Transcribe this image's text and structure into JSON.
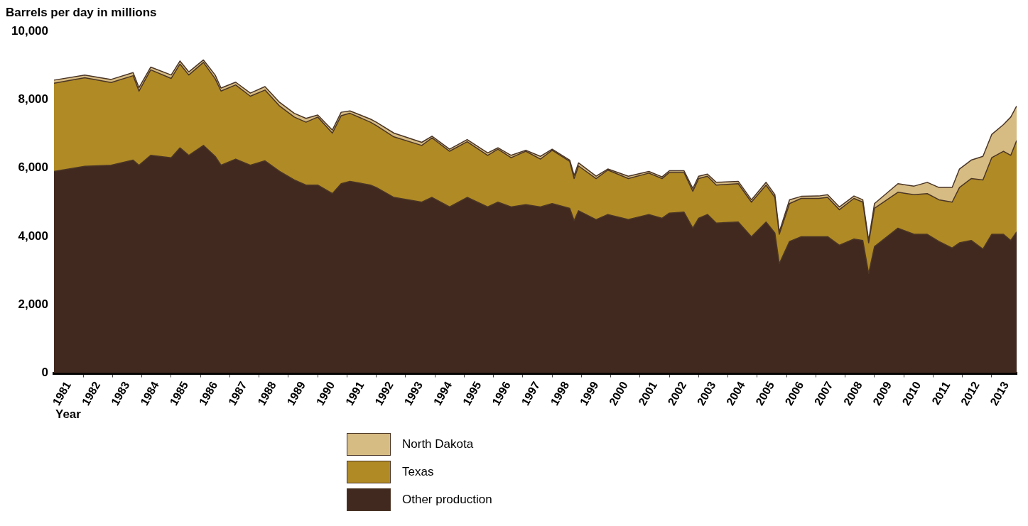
{
  "chart_data": {
    "type": "area",
    "stacked": true,
    "xlabel": "Year",
    "ylabel": "Barrels per day in millions",
    "legend": "bottom",
    "x": [
      1981.0,
      1982.05,
      1982.95,
      1983.7,
      1983.9,
      1984.3,
      1985.0,
      1985.3,
      1985.6,
      1986.1,
      1986.5,
      1986.7,
      1987.2,
      1987.7,
      1988.2,
      1988.7,
      1989.2,
      1989.6,
      1990.0,
      1990.5,
      1990.8,
      1991.1,
      1991.8,
      1992.0,
      1992.6,
      1993.55,
      1993.9,
      1994.5,
      1995.1,
      1995.8,
      1996.15,
      1996.6,
      1997.1,
      1997.6,
      1998.0,
      1998.6,
      1998.75,
      1998.9,
      1999.5,
      1999.9,
      2000.6,
      2001.3,
      2001.75,
      2002.0,
      2002.5,
      2002.8,
      2003.0,
      2003.3,
      2003.6,
      2004.35,
      2004.8,
      2005.3,
      2005.6,
      2005.75,
      2006.1,
      2006.5,
      2007.1,
      2007.4,
      2007.8,
      2008.3,
      2008.6,
      2008.8,
      2009.0,
      2009.8,
      2010.35,
      2010.8,
      2011.2,
      2011.65,
      2011.9,
      2012.3,
      2012.7,
      2013.0,
      2013.4,
      2013.65,
      2013.85
    ],
    "series": [
      {
        "name": "Other production",
        "color": "#42291f",
        "values": [
          5900,
          6050,
          6080,
          6230,
          6080,
          6370,
          6300,
          6590,
          6370,
          6660,
          6340,
          6080,
          6260,
          6080,
          6210,
          5900,
          5650,
          5500,
          5500,
          5250,
          5540,
          5610,
          5500,
          5430,
          5140,
          5000,
          5140,
          4860,
          5140,
          4860,
          5000,
          4860,
          4930,
          4860,
          4960,
          4820,
          4460,
          4750,
          4490,
          4640,
          4490,
          4640,
          4530,
          4680,
          4710,
          4240,
          4530,
          4640,
          4390,
          4420,
          3990,
          4420,
          4100,
          3200,
          3850,
          3990,
          3990,
          3990,
          3740,
          3920,
          3880,
          2910,
          3700,
          4240,
          4060,
          4060,
          3850,
          3660,
          3810,
          3880,
          3630,
          4060,
          4060,
          3880,
          4130
        ]
      },
      {
        "name": "Texas",
        "color": "#b08a25",
        "values": [
          2580,
          2590,
          2420,
          2470,
          2170,
          2500,
          2320,
          2450,
          2350,
          2430,
          2270,
          2170,
          2170,
          2020,
          2070,
          1910,
          1840,
          1840,
          1990,
          1770,
          1990,
          1990,
          1840,
          1810,
          1770,
          1660,
          1740,
          1630,
          1630,
          1510,
          1550,
          1440,
          1560,
          1400,
          1560,
          1370,
          1230,
          1310,
          1200,
          1300,
          1200,
          1210,
          1160,
          1190,
          1160,
          1080,
          1160,
          1120,
          1110,
          1120,
          1010,
          1080,
          1040,
          860,
          1110,
          1120,
          1120,
          1150,
          1040,
          1190,
          1120,
          900,
          1120,
          1050,
          1160,
          1190,
          1220,
          1340,
          1620,
          1810,
          2020,
          2240,
          2430,
          2490,
          2670
        ]
      },
      {
        "name": "North Dakota",
        "color": "#d6bb82",
        "values": [
          90,
          80,
          90,
          90,
          100,
          80,
          100,
          90,
          90,
          70,
          110,
          90,
          80,
          90,
          100,
          110,
          110,
          110,
          60,
          90,
          100,
          70,
          90,
          100,
          110,
          90,
          50,
          60,
          60,
          70,
          40,
          70,
          30,
          80,
          30,
          40,
          90,
          90,
          70,
          30,
          70,
          50,
          50,
          50,
          50,
          80,
          70,
          60,
          80,
          70,
          70,
          80,
          80,
          70,
          110,
          60,
          70,
          80,
          80,
          70,
          70,
          70,
          140,
          250,
          250,
          330,
          360,
          430,
          540,
          540,
          690,
          680,
          780,
          1120,
          1010
        ]
      }
    ],
    "xlim": [
      1981,
      2013.85
    ],
    "xticks": [
      {
        "value": 1981.5,
        "label": "1981"
      },
      {
        "value": 1982,
        "label": null
      },
      {
        "value": 1982.5,
        "label": "1982"
      },
      {
        "value": 1983,
        "label": null
      },
      {
        "value": 1983.5,
        "label": "1983"
      },
      {
        "value": 1984,
        "label": null
      },
      {
        "value": 1984.5,
        "label": "1984"
      },
      {
        "value": 1985,
        "label": null
      },
      {
        "value": 1985.5,
        "label": "1985"
      },
      {
        "value": 1986,
        "label": null
      },
      {
        "value": 1986.5,
        "label": "1986"
      },
      {
        "value": 1987,
        "label": null
      },
      {
        "value": 1987.5,
        "label": "1987"
      },
      {
        "value": 1988,
        "label": null
      },
      {
        "value": 1988.5,
        "label": "1988"
      },
      {
        "value": 1989,
        "label": null
      },
      {
        "value": 1989.5,
        "label": "1989"
      },
      {
        "value": 1990,
        "label": null
      },
      {
        "value": 1990.5,
        "label": "1990"
      },
      {
        "value": 1991,
        "label": null
      },
      {
        "value": 1991.5,
        "label": "1991"
      },
      {
        "value": 1992,
        "label": null
      },
      {
        "value": 1992.5,
        "label": "1992"
      },
      {
        "value": 1993,
        "label": null
      },
      {
        "value": 1993.5,
        "label": "1993"
      },
      {
        "value": 1994,
        "label": null
      },
      {
        "value": 1994.5,
        "label": "1994"
      },
      {
        "value": 1995,
        "label": null
      },
      {
        "value": 1995.5,
        "label": "1995"
      },
      {
        "value": 1996,
        "label": null
      },
      {
        "value": 1996.5,
        "label": "1996"
      },
      {
        "value": 1997,
        "label": null
      },
      {
        "value": 1997.5,
        "label": "1997"
      },
      {
        "value": 1998,
        "label": null
      },
      {
        "value": 1998.5,
        "label": "1998"
      },
      {
        "value": 1999,
        "label": null
      },
      {
        "value": 1999.5,
        "label": "1999"
      },
      {
        "value": 2000,
        "label": null
      },
      {
        "value": 2000.5,
        "label": "2000"
      },
      {
        "value": 2001,
        "label": null
      },
      {
        "value": 2001.5,
        "label": "2001"
      },
      {
        "value": 2002,
        "label": null
      },
      {
        "value": 2002.5,
        "label": "2002"
      },
      {
        "value": 2003,
        "label": null
      },
      {
        "value": 2003.5,
        "label": "2003"
      },
      {
        "value": 2004,
        "label": null
      },
      {
        "value": 2004.5,
        "label": "2004"
      },
      {
        "value": 2005,
        "label": null
      },
      {
        "value": 2005.5,
        "label": "2005"
      },
      {
        "value": 2006,
        "label": null
      },
      {
        "value": 2006.5,
        "label": "2006"
      },
      {
        "value": 2007,
        "label": null
      },
      {
        "value": 2007.5,
        "label": "2007"
      },
      {
        "value": 2008,
        "label": null
      },
      {
        "value": 2008.5,
        "label": "2008"
      },
      {
        "value": 2009,
        "label": null
      },
      {
        "value": 2009.5,
        "label": "2009"
      },
      {
        "value": 2010,
        "label": null
      },
      {
        "value": 2010.5,
        "label": "2010"
      },
      {
        "value": 2011,
        "label": null
      },
      {
        "value": 2011.5,
        "label": "2011"
      },
      {
        "value": 2012,
        "label": null
      },
      {
        "value": 2012.5,
        "label": "2012"
      },
      {
        "value": 2013,
        "label": null
      },
      {
        "value": 2013.5,
        "label": "2013"
      }
    ],
    "ylim": [
      0,
      10000
    ],
    "yticks": [
      0,
      {
        "value": 2000,
        "label": "2,000"
      },
      {
        "value": 4000,
        "label": "4,000"
      },
      {
        "value": 6000,
        "label": "6,000"
      },
      {
        "value": 8000,
        "label": "8,000"
      },
      {
        "value": 10000,
        "label": "10,000"
      }
    ]
  }
}
